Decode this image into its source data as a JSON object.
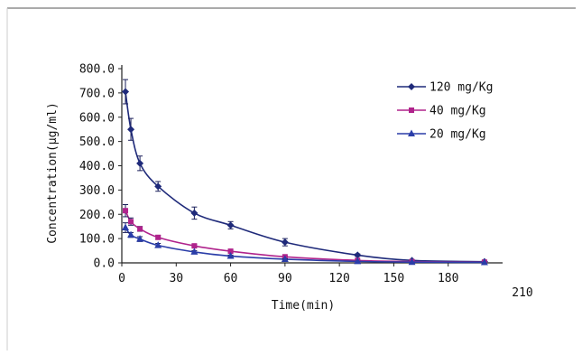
{
  "chart_data": {
    "type": "line",
    "title": "",
    "xlabel": "Time(min)",
    "ylabel": "Concentration(μg/ml)",
    "xlim": [
      0,
      210
    ],
    "ylim": [
      0,
      800
    ],
    "x_ticks": [
      "0",
      "30",
      "60",
      "90",
      "120",
      "150",
      "180",
      "210"
    ],
    "y_ticks": [
      "0.0",
      "100.0",
      "200.0",
      "300.0",
      "400.0",
      "500.0",
      "600.0",
      "700.0",
      "800.0"
    ],
    "grid": false,
    "legend_position": "top-right",
    "series": [
      {
        "name": "120 mg/Kg",
        "color": "#1f2a7a",
        "marker": "diamond",
        "x": [
          2,
          5,
          10,
          20,
          40,
          60,
          90,
          130,
          160,
          200
        ],
        "y": [
          705,
          550,
          410,
          315,
          205,
          155,
          85,
          32,
          10,
          5
        ],
        "err": [
          50,
          45,
          30,
          20,
          25,
          15,
          15,
          5,
          3,
          2
        ]
      },
      {
        "name": "40 mg/Kg",
        "color": "#b0238c",
        "marker": "square",
        "x": [
          2,
          5,
          10,
          20,
          40,
          60,
          90,
          130,
          160,
          200
        ],
        "y": [
          215,
          170,
          140,
          105,
          70,
          48,
          25,
          10,
          5,
          3
        ],
        "err": [
          25,
          15,
          10,
          8,
          5,
          5,
          3,
          2,
          1,
          1
        ]
      },
      {
        "name": "20 mg/Kg",
        "color": "#2a3da8",
        "marker": "triangle",
        "x": [
          2,
          5,
          10,
          20,
          40,
          60,
          90,
          130,
          160,
          200
        ],
        "y": [
          145,
          115,
          98,
          72,
          45,
          28,
          15,
          6,
          3,
          2
        ],
        "err": [
          20,
          10,
          10,
          8,
          5,
          4,
          2,
          1,
          1,
          1
        ]
      }
    ]
  }
}
